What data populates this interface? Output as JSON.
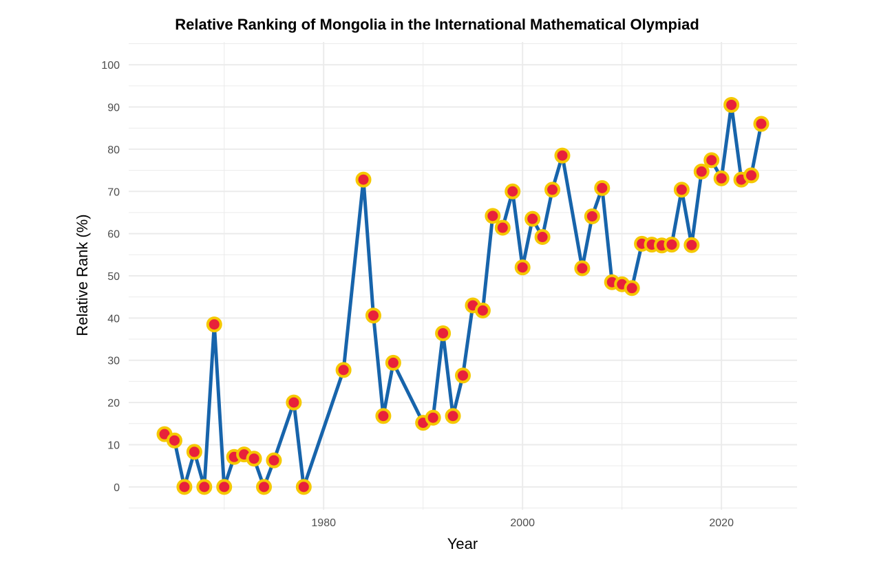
{
  "chart_data": {
    "type": "line",
    "title": "Relative Ranking of Mongolia in the International Mathematical Olympiad",
    "xlabel": "Year",
    "ylabel": "Relative Rank (%)",
    "xlim": [
      1960.4,
      2027.6
    ],
    "ylim": [
      -5.4,
      105.4
    ],
    "x_ticks": [
      1980,
      2000,
      2020
    ],
    "x_minor_ticks": [
      1970,
      1990,
      2010
    ],
    "y_ticks": [
      0,
      10,
      20,
      30,
      40,
      50,
      60,
      70,
      80,
      90,
      100
    ],
    "grid": true,
    "legend": "none",
    "colors": {
      "line": "#1764AB",
      "point_fill": "#E8213A",
      "point_outline": "#F5C800",
      "grid": "#EBEBEB",
      "tick_text": "#4d4d4d"
    },
    "x": [
      1964,
      1965,
      1966,
      1967,
      1968,
      1969,
      1970,
      1971,
      1972,
      1973,
      1974,
      1975,
      1977,
      1978,
      1982,
      1984,
      1985,
      1986,
      1987,
      1990,
      1991,
      1992,
      1993,
      1994,
      1995,
      1996,
      1997,
      1998,
      1999,
      2000,
      2001,
      2002,
      2003,
      2004,
      2006,
      2007,
      2008,
      2009,
      2010,
      2011,
      2012,
      2013,
      2014,
      2015,
      2016,
      2017,
      2018,
      2019,
      2020,
      2021,
      2022,
      2023,
      2024
    ],
    "y": [
      12.5,
      11.0,
      0,
      8.3,
      0,
      38.5,
      0,
      7.1,
      7.7,
      6.7,
      0,
      6.3,
      20.0,
      0,
      27.7,
      72.8,
      40.6,
      16.8,
      29.4,
      15.2,
      16.4,
      36.4,
      16.8,
      26.4,
      43.0,
      41.8,
      64.2,
      61.4,
      70.0,
      52.0,
      63.5,
      59.2,
      70.4,
      78.5,
      51.8,
      64.1,
      70.8,
      48.5,
      48.0,
      47.1,
      57.6,
      57.4,
      57.2,
      57.4,
      70.4,
      57.3,
      74.7,
      77.4,
      73.1,
      90.5,
      72.8,
      73.8,
      86.0
    ]
  }
}
